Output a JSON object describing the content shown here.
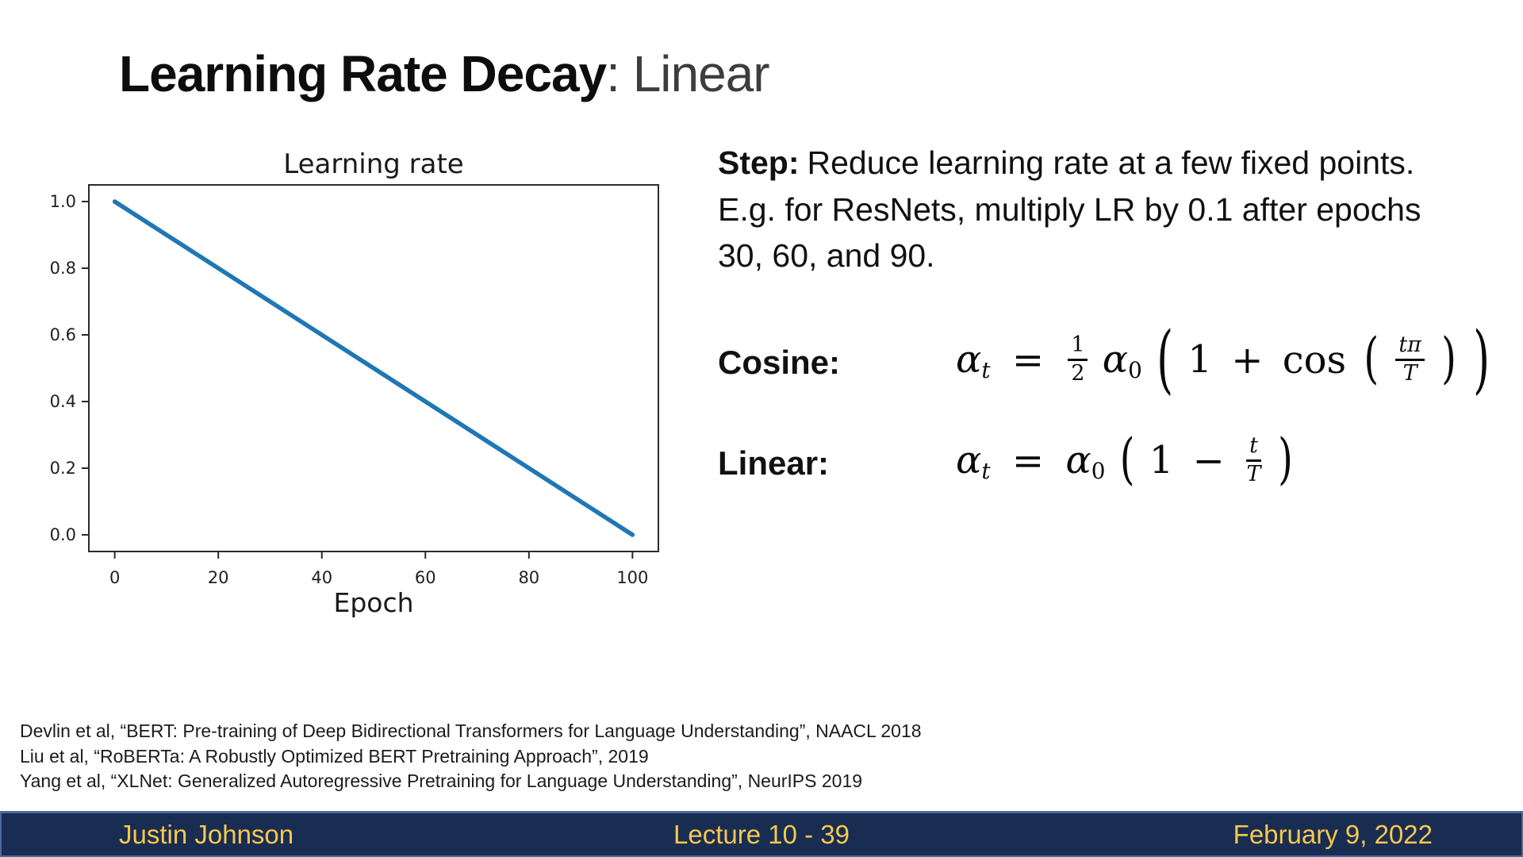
{
  "slide": {
    "title": {
      "main": "Learning Rate Decay",
      "suffix": ": Linear"
    }
  },
  "step": {
    "label": "Step:",
    "lines": [
      "Reduce learning rate at a few fixed points.",
      "E.g. for ResNets, multiply LR by 0.1 after epochs",
      "30, 60, and 90."
    ]
  },
  "cosine": {
    "label": "Cosine:",
    "formula": {
      "alpha": "α",
      "sub_t": "t",
      "equals": "=",
      "half_num": "1",
      "half_den": "2",
      "alpha0": "α",
      "sub_0": "0",
      "lparen": "(",
      "one": "1",
      "plus": "+",
      "func": "cos",
      "lparen2": "(",
      "frac_num": "tπ",
      "frac_den": "T",
      "rparen2": ")",
      "rparen": ")"
    }
  },
  "linear": {
    "label": "Linear:",
    "formula": {
      "alpha": "α",
      "sub_t": "t",
      "equals": "=",
      "alpha0": "α",
      "sub_0": "0",
      "lparen": "(",
      "one": "1",
      "minus": "−",
      "frac_num": "t",
      "frac_den": "T",
      "rparen": ")"
    }
  },
  "citations": [
    "Devlin et al, “BERT: Pre-training of Deep Bidirectional Transformers for Language Understanding”, NAACL 2018",
    "Liu et al, “RoBERTa: A Robustly Optimized BERT Pretraining Approach”, 2019",
    "Yang et al, “XLNet: Generalized Autoregressive Pretraining for Language Understanding”, NeurIPS 2019"
  ],
  "footer": {
    "author": "Justin Johnson",
    "lecture": "Lecture 10 - 39",
    "date": "February 9, 2022",
    "bar_color": "#192c52",
    "edge_color": "#4a69a0",
    "text_color": "#f6c84d"
  },
  "chart_data": {
    "type": "line",
    "title": "Learning rate",
    "xlabel": "Epoch",
    "ylabel": "",
    "x": [
      0,
      100
    ],
    "y": [
      1.0,
      0.0
    ],
    "xticks": [
      0,
      20,
      40,
      60,
      80,
      100
    ],
    "ytick_labels": [
      "0.0",
      "0.2",
      "0.4",
      "0.6",
      "0.8",
      "1.0"
    ],
    "xlim": [
      -5,
      105
    ],
    "ylim": [
      -0.05,
      1.05
    ],
    "grid": false,
    "legend": null,
    "line_color": "#1f77b4",
    "line_width": 5.5,
    "axis_color": "#2b2b2b",
    "text_color": "#1f1f1f"
  }
}
